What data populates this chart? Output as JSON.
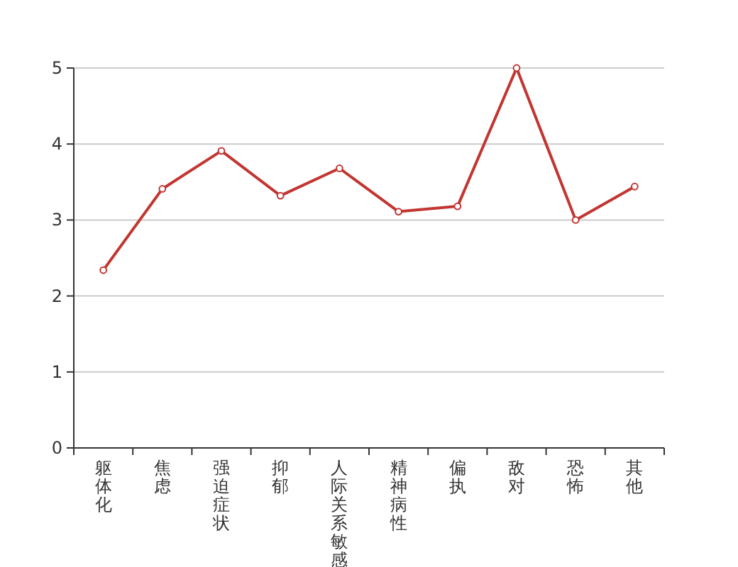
{
  "chart_data": {
    "type": "line",
    "categories": [
      "躯体化",
      "焦虑",
      "强迫症状",
      "抑郁",
      "人际关系敏感",
      "精神病性",
      "偏执",
      "敌对",
      "恐怖",
      "其他"
    ],
    "series": [
      {
        "color": "#c23531",
        "values": [
          2.34,
          3.41,
          3.91,
          3.32,
          3.68,
          3.11,
          3.18,
          5.0,
          3.0,
          3.44
        ]
      }
    ],
    "ylim": [
      0,
      5
    ],
    "yticks": [
      0,
      1,
      2,
      3,
      4,
      5
    ],
    "grid": "y",
    "marker": "circle"
  }
}
